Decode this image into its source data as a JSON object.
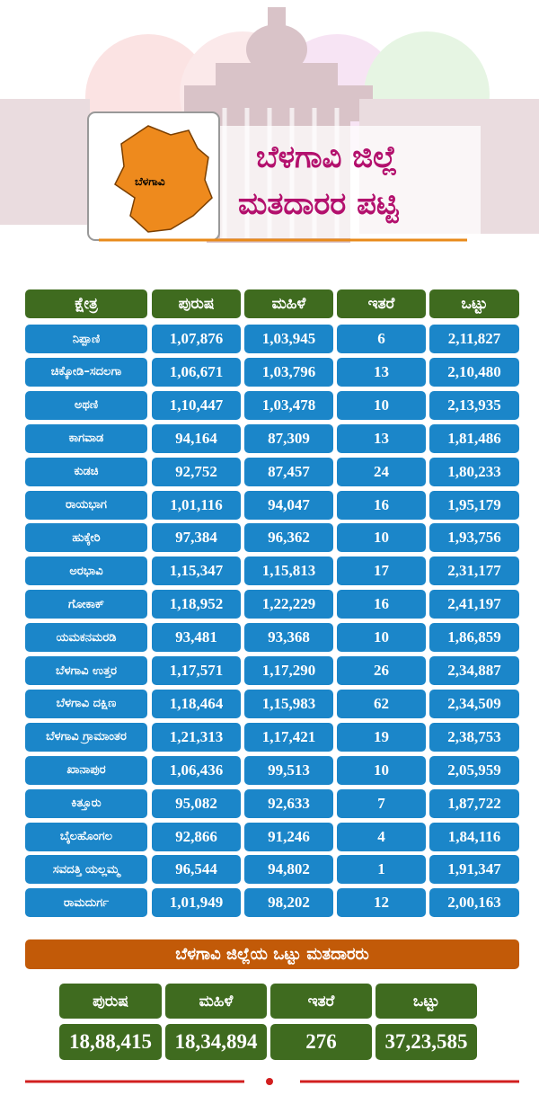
{
  "header": {
    "map_label": "ಬೆಳಗಾವಿ",
    "title": [
      "ಬೆಳಗಾವಿ ಜಿಲ್ಲೆ",
      "ಮತದಾರರ ಪಟ್ಟಿ"
    ]
  },
  "table": {
    "columns": [
      "ಕ್ಷೇತ್ರ",
      "ಪುರುಷ",
      "ಮಹಿಳೆ",
      "ಇತರೆ",
      "ಒಟ್ಟು"
    ],
    "rows": [
      [
        "ನಿಪ್ಪಾಣಿ",
        "1,07,876",
        "1,03,945",
        "6",
        "2,11,827"
      ],
      [
        "ಚಿಕ್ಕೋಡಿ–ಸದಲಗಾ",
        "1,06,671",
        "1,03,796",
        "13",
        "2,10,480"
      ],
      [
        "ಅಥಣಿ",
        "1,10,447",
        "1,03,478",
        "10",
        "2,13,935"
      ],
      [
        "ಕಾಗವಾಡ",
        "94,164",
        "87,309",
        "13",
        "1,81,486"
      ],
      [
        "ಕುಡಚಿ",
        "92,752",
        "87,457",
        "24",
        "1,80,233"
      ],
      [
        "ರಾಯಭಾಗ",
        "1,01,116",
        "94,047",
        "16",
        "1,95,179"
      ],
      [
        "ಹುಕ್ಕೇರಿ",
        "97,384",
        "96,362",
        "10",
        "1,93,756"
      ],
      [
        "ಅರಭಾವಿ",
        "1,15,347",
        "1,15,813",
        "17",
        "2,31,177"
      ],
      [
        "ಗೋಕಾಕ್",
        "1,18,952",
        "1,22,229",
        "16",
        "2,41,197"
      ],
      [
        "ಯಮಕನಮರಡಿ",
        "93,481",
        "93,368",
        "10",
        "1,86,859"
      ],
      [
        "ಬೆಳಗಾವಿ ಉತ್ತರ",
        "1,17,571",
        "1,17,290",
        "26",
        "2,34,887"
      ],
      [
        "ಬೆಳಗಾವಿ ದಕ್ಷಿಣ",
        "1,18,464",
        "1,15,983",
        "62",
        "2,34,509"
      ],
      [
        "ಬೆಳಗಾವಿ ಗ್ರಾಮಾಂತರ",
        "1,21,313",
        "1,17,421",
        "19",
        "2,38,753"
      ],
      [
        "ಖಾನಾಪುರ",
        "1,06,436",
        "99,513",
        "10",
        "2,05,959"
      ],
      [
        "ಕಿತ್ತೂರು",
        "95,082",
        "92,633",
        "7",
        "1,87,722"
      ],
      [
        "ಬೈಲಹೊಂಗಲ",
        "92,866",
        "91,246",
        "4",
        "1,84,116"
      ],
      [
        "ಸವದತ್ತಿ ಯಲ್ಲಮ್ಮ",
        "96,544",
        "94,802",
        "1",
        "1,91,347"
      ],
      [
        "ರಾಮದುರ್ಗ",
        "1,01,949",
        "98,202",
        "12",
        "2,00,163"
      ]
    ]
  },
  "summary": {
    "title": "ಬೆಳಗಾವಿ ಜಿಲ್ಲೆಯ ಒಟ್ಟು ಮತದಾರರು",
    "columns": [
      "ಪುರುಷ",
      "ಮಹಿಳೆ",
      "ಇತರೆ",
      "ಒಟ್ಟು"
    ],
    "values": [
      "18,88,415",
      "18,34,894",
      "276",
      "37,23,585"
    ]
  }
}
